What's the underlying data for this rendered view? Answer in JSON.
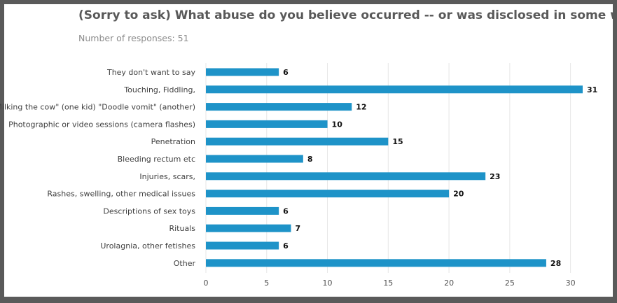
{
  "header": {
    "title": "(Sorry to ask) What abuse do you believe occurred -- or was disclosed in some way?",
    "subtitle": "Number of responses: 51"
  },
  "colors": {
    "bar": "#1e93c8",
    "grid": "#e6e6e6",
    "frame": "#5a5a5a"
  },
  "chart_data": {
    "type": "bar",
    "orientation": "horizontal",
    "categories": [
      "They don't want to say",
      "Touching, Fiddling,",
      "\"Milking the cow\" (one kid) \"Doodle vomit\" (another)",
      "Photographic or video sessions (camera flashes)",
      "Penetration",
      "Bleeding rectum etc",
      "Injuries, scars,",
      "Rashes, swelling, other medical issues",
      "Descriptions of sex toys",
      "Rituals",
      "Urolagnia, other fetishes",
      "Other"
    ],
    "values": [
      6,
      31,
      12,
      10,
      15,
      8,
      23,
      20,
      6,
      7,
      6,
      28
    ],
    "xlim": [
      0,
      31
    ],
    "xticks": [
      0,
      5,
      10,
      15,
      20,
      25,
      30
    ],
    "grid": true,
    "data_labels": true
  }
}
